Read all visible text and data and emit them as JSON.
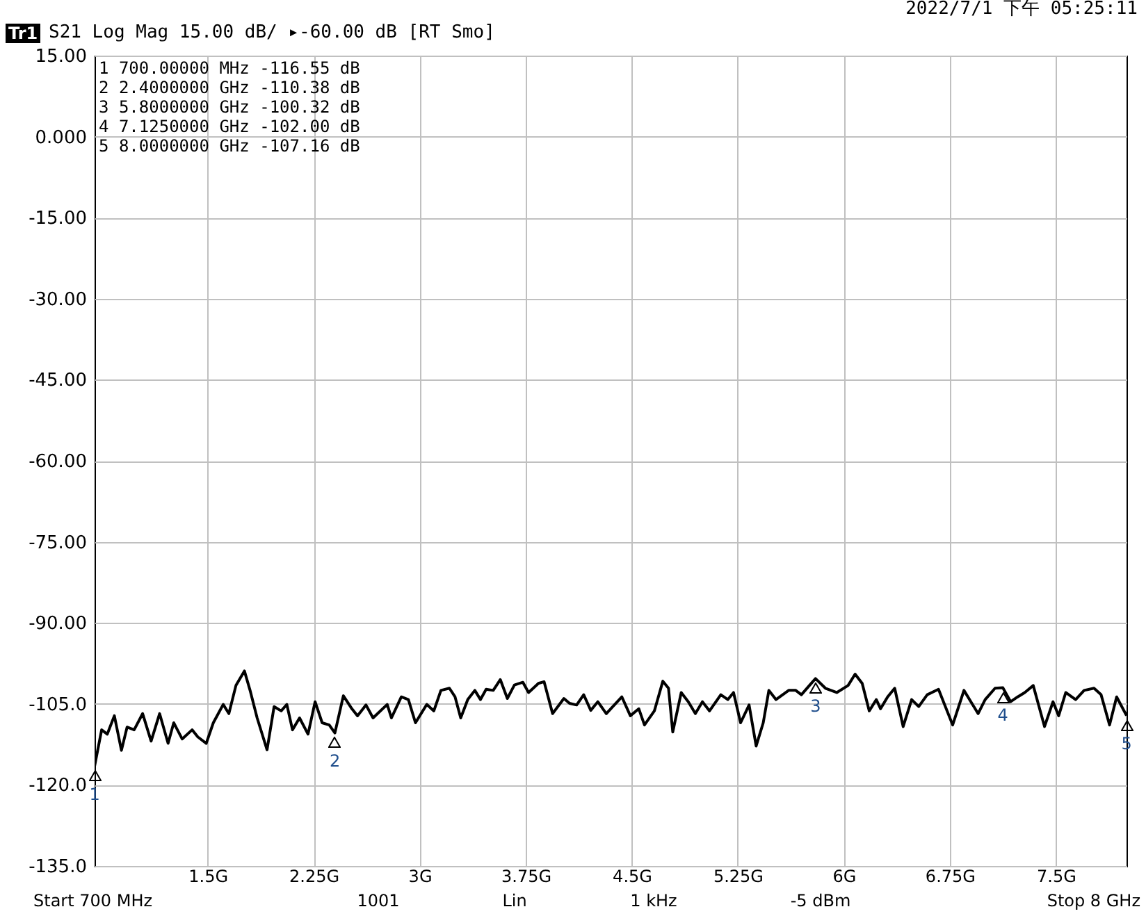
{
  "chart_data": {
    "type": "line",
    "title": "S21 Log Mag 15.00 dB/ ▸-60.00 dB [RT Smo]",
    "x": [
      0.7,
      0.75,
      0.79,
      0.84,
      0.89,
      0.93,
      0.98,
      1.04,
      1.1,
      1.16,
      1.22,
      1.26,
      1.32,
      1.39,
      1.43,
      1.49,
      1.54,
      1.61,
      1.65,
      1.7,
      1.76,
      1.8,
      1.85,
      1.92,
      1.97,
      2.02,
      2.06,
      2.1,
      2.15,
      2.21,
      2.26,
      2.31,
      2.36,
      2.4,
      2.46,
      2.52,
      2.56,
      2.62,
      2.67,
      2.77,
      2.8,
      2.87,
      2.92,
      2.97,
      3.05,
      3.1,
      3.15,
      3.21,
      3.25,
      3.29,
      3.34,
      3.39,
      3.43,
      3.47,
      3.52,
      3.57,
      3.62,
      3.67,
      3.73,
      3.77,
      3.84,
      3.88,
      3.94,
      4.02,
      4.06,
      4.11,
      4.16,
      4.21,
      4.26,
      4.32,
      4.38,
      4.43,
      4.49,
      4.55,
      4.59,
      4.66,
      4.72,
      4.76,
      4.79,
      4.85,
      4.9,
      4.95,
      5.0,
      5.05,
      5.13,
      5.18,
      5.22,
      5.27,
      5.33,
      5.38,
      5.43,
      5.47,
      5.52,
      5.61,
      5.66,
      5.7,
      5.75,
      5.8,
      5.87,
      5.95,
      6.03,
      6.08,
      6.13,
      6.18,
      6.23,
      6.26,
      6.31,
      6.36,
      6.42,
      6.48,
      6.53,
      6.59,
      6.67,
      6.77,
      6.85,
      6.92,
      6.95,
      7.0,
      7.07,
      7.125,
      7.18,
      7.23,
      7.28,
      7.34,
      7.42,
      7.48,
      7.52,
      7.57,
      7.64,
      7.7,
      7.77,
      7.82,
      7.88,
      7.93,
      8.0
    ],
    "series": [
      {
        "color": "#000000",
        "values": [
          -116.55,
          -109.8,
          -110.6,
          -107.2,
          -113.6,
          -109.3,
          -109.8,
          -106.8,
          -111.9,
          -106.8,
          -112.3,
          -108.5,
          -111.5,
          -109.8,
          -111.1,
          -112.3,
          -108.5,
          -105.1,
          -106.8,
          -101.6,
          -98.9,
          -102.5,
          -107.6,
          -113.5,
          -105.5,
          -106.3,
          -105.1,
          -109.8,
          -107.6,
          -110.6,
          -104.6,
          -108.5,
          -108.9,
          -110.38,
          -103.5,
          -105.9,
          -107.2,
          -105.2,
          -107.6,
          -105.1,
          -107.6,
          -103.7,
          -104.2,
          -108.5,
          -105.1,
          -106.3,
          -102.5,
          -102.1,
          -103.7,
          -107.6,
          -104.2,
          -102.5,
          -104.2,
          -102.3,
          -102.5,
          -100.5,
          -104.0,
          -101.5,
          -101.0,
          -102.9,
          -101.2,
          -100.9,
          -106.8,
          -104.0,
          -104.9,
          -105.2,
          -103.3,
          -106.2,
          -104.6,
          -106.8,
          -105.1,
          -103.7,
          -107.2,
          -105.9,
          -108.9,
          -106.3,
          -100.8,
          -102.1,
          -110.2,
          -102.9,
          -104.6,
          -106.8,
          -104.6,
          -106.3,
          -103.3,
          -104.2,
          -102.9,
          -108.5,
          -105.2,
          -112.8,
          -108.5,
          -102.5,
          -104.2,
          -102.5,
          -102.5,
          -103.3,
          -101.8,
          -100.32,
          -102.1,
          -102.9,
          -101.6,
          -99.5,
          -101.2,
          -106.3,
          -104.2,
          -105.9,
          -103.7,
          -102.1,
          -109.2,
          -104.2,
          -105.5,
          -103.3,
          -102.3,
          -108.9,
          -102.5,
          -105.5,
          -106.8,
          -104.2,
          -102.1,
          -102.0,
          -104.6,
          -103.7,
          -102.9,
          -101.6,
          -109.2,
          -104.6,
          -107.2,
          -102.9,
          -104.2,
          -102.5,
          -102.1,
          -103.3,
          -108.9,
          -103.7,
          -107.16
        ]
      }
    ],
    "xlim": [
      0.7,
      8
    ],
    "xticks": [
      {
        "value": 1.5,
        "label": "1.5G"
      },
      {
        "value": 2.25,
        "label": "2.25G"
      },
      {
        "value": 3,
        "label": "3G"
      },
      {
        "value": 3.75,
        "label": "3.75G"
      },
      {
        "value": 4.5,
        "label": "4.5G"
      },
      {
        "value": 5.25,
        "label": "5.25G"
      },
      {
        "value": 6,
        "label": "6G"
      },
      {
        "value": 6.75,
        "label": "6.75G"
      },
      {
        "value": 7.5,
        "label": "7.5G"
      }
    ],
    "ylim": [
      -135,
      15
    ],
    "yticks": [
      {
        "value": 15,
        "label": "15.00"
      },
      {
        "value": 0,
        "label": "0.000"
      },
      {
        "value": -15,
        "label": "-15.00"
      },
      {
        "value": -30,
        "label": "-30.00"
      },
      {
        "value": -45,
        "label": "-45.00"
      },
      {
        "value": -60,
        "label": "-60.00"
      },
      {
        "value": -75,
        "label": "-75.00"
      },
      {
        "value": -90,
        "label": "-90.00"
      },
      {
        "value": -105,
        "label": "-105.0"
      },
      {
        "value": -120,
        "label": "-120.0"
      },
      {
        "value": -135,
        "label": "-135.0"
      }
    ],
    "grid": true,
    "annotations": [
      "Tr1",
      "2022/7/1 下午 05:25:11",
      "1 700.00000 MHz -116.55 dB",
      "2 2.4000000 GHz -110.38 dB",
      "3 5.8000000 GHz -100.32 dB",
      "4 7.1250000 GHz -102.00 dB",
      "5 8.0000000 GHz -107.16 dB",
      "Start 700 MHz",
      "1001",
      "Lin",
      "1 kHz",
      "-5 dBm",
      "Stop 8 GHz",
      {
        "text": "1",
        "x": 0.7,
        "y": -116.55
      },
      {
        "text": "2",
        "x": 2.4,
        "y": -110.38
      },
      {
        "text": "3",
        "x": 5.8,
        "y": -100.32
      },
      {
        "text": "4",
        "x": 7.125,
        "y": -102.0
      },
      {
        "text": "5",
        "x": 8.0,
        "y": -107.16
      }
    ]
  }
}
